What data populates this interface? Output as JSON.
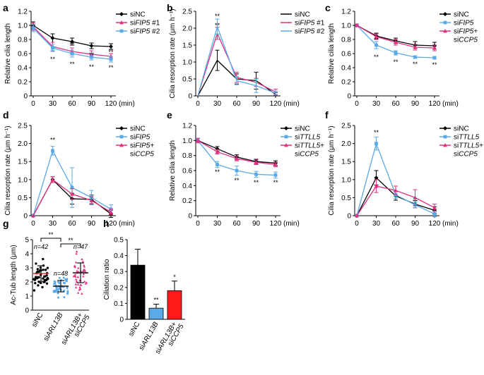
{
  "chart_data": [
    {
      "panel": "a",
      "type": "line",
      "ylabel": "Relative cilia length",
      "xunit": "(min)",
      "x": [
        0,
        30,
        60,
        90,
        120
      ],
      "ylim": [
        0,
        1.2
      ],
      "yticks": [
        "0",
        "0.2",
        "0.4",
        "0.6",
        "0.8",
        "1.0",
        "1.2"
      ],
      "series": [
        {
          "name": "siNC",
          "prefix": "si",
          "gene": "NC",
          "suffix": "",
          "color": "#000000",
          "marker": "diamond",
          "values": [
            1.0,
            0.82,
            0.77,
            0.71,
            0.7
          ],
          "err": [
            0.05,
            0.06,
            0.05,
            0.04,
            0.04
          ]
        },
        {
          "name": "siFIP5 #1",
          "prefix": "si",
          "gene": "FIP5",
          "suffix": " #1",
          "color": "#e0307f",
          "marker": "triangle",
          "values": [
            0.98,
            0.7,
            0.63,
            0.59,
            0.56
          ],
          "err": [
            0.05,
            0.06,
            0.05,
            0.05,
            0.04
          ]
        },
        {
          "name": "siFIP5 #2",
          "prefix": "si",
          "gene": "FIP5",
          "suffix": " #2",
          "color": "#5aa9e8",
          "marker": "square",
          "values": [
            0.96,
            0.68,
            0.6,
            0.55,
            0.52
          ],
          "err": [
            0.05,
            0.05,
            0.05,
            0.04,
            0.04
          ]
        }
      ],
      "annotations": [
        {
          "x": 30,
          "y": 0.52,
          "text": "**"
        },
        {
          "x": 60,
          "y": 0.73,
          "text": "**"
        },
        {
          "x": 60,
          "y": 0.45,
          "text": "**"
        },
        {
          "x": 90,
          "y": 0.58,
          "text": "**"
        },
        {
          "x": 90,
          "y": 0.41,
          "text": "**"
        },
        {
          "x": 120,
          "y": 0.62,
          "text": "**"
        },
        {
          "x": 120,
          "y": 0.4,
          "text": "**"
        }
      ]
    },
    {
      "panel": "b",
      "type": "line",
      "ylabel": "Cilia resorption rate (μm h⁻¹)",
      "xunit": "(min)",
      "x": [
        0,
        30,
        60,
        90,
        120
      ],
      "ylim": [
        0,
        2.5
      ],
      "yticks": [
        "0",
        "0.5",
        "1.0",
        "1.5",
        "2.0",
        "2.5"
      ],
      "series": [
        {
          "name": "siNC",
          "prefix": "si",
          "gene": "NC",
          "suffix": "",
          "color": "#000000",
          "marker": "none",
          "values": [
            0,
            1.05,
            0.5,
            0.45,
            0.05
          ],
          "err": [
            0,
            0.3,
            0.15,
            0.25,
            0.05
          ]
        },
        {
          "name": "siFIP5 #1",
          "prefix": "si",
          "gene": "FIP5",
          "suffix": " #1",
          "color": "#e0307f",
          "marker": "none",
          "values": [
            0,
            1.85,
            0.55,
            0.4,
            0.12
          ],
          "err": [
            0,
            0.18,
            0.15,
            0.12,
            0.08
          ]
        },
        {
          "name": "siFIP5 #2",
          "prefix": "si",
          "gene": "FIP5",
          "suffix": " #2",
          "color": "#5aa9e8",
          "marker": "none",
          "values": [
            0,
            2.05,
            0.45,
            0.3,
            0.08
          ],
          "err": [
            0,
            0.22,
            0.12,
            0.2,
            0.06
          ]
        }
      ],
      "annotations": [
        {
          "x": 30,
          "y": 2.35,
          "text": "**"
        },
        {
          "x": 30,
          "y": 2.08,
          "text": "**"
        }
      ]
    },
    {
      "panel": "c",
      "type": "line",
      "ylabel": "Relative cilia length",
      "xunit": "(min)",
      "x": [
        0,
        30,
        60,
        90,
        120
      ],
      "ylim": [
        0,
        1.2
      ],
      "yticks": [
        "0",
        "0.2",
        "0.4",
        "0.6",
        "0.8",
        "1.0",
        "1.2"
      ],
      "series": [
        {
          "name": "siNC",
          "prefix": "si",
          "gene": "NC",
          "suffix": "",
          "color": "#000000",
          "marker": "diamond",
          "values": [
            1.0,
            0.85,
            0.78,
            0.72,
            0.71
          ],
          "err": [
            0.02,
            0.04,
            0.04,
            0.05,
            0.05
          ]
        },
        {
          "name": "siFIP5",
          "prefix": "si",
          "gene": "FIP5",
          "suffix": "",
          "color": "#5aa9e8",
          "marker": "square",
          "values": [
            1.0,
            0.72,
            0.61,
            0.55,
            0.54
          ],
          "err": [
            0.02,
            0.05,
            0.03,
            0.02,
            0.02
          ]
        },
        {
          "name": "siFIP5+ siCCP5",
          "prefix": "si",
          "gene": "FIP5",
          "suffix": "+",
          "line2": "CCP5",
          "color": "#e0307f",
          "marker": "triangle",
          "values": [
            1.0,
            0.84,
            0.76,
            0.69,
            0.68
          ],
          "err": [
            0.02,
            0.04,
            0.04,
            0.04,
            0.04
          ]
        }
      ],
      "annotations": [
        {
          "x": 30,
          "y": 0.55,
          "text": "**"
        },
        {
          "x": 60,
          "y": 0.48,
          "text": "**"
        },
        {
          "x": 90,
          "y": 0.45,
          "text": "**"
        },
        {
          "x": 120,
          "y": 0.44,
          "text": "**"
        }
      ]
    },
    {
      "panel": "d",
      "type": "line",
      "ylabel": "Cilia resorption rate (μm h⁻¹)",
      "xunit": "(min)",
      "x": [
        0,
        30,
        60,
        90,
        120
      ],
      "ylim": [
        0,
        2.5
      ],
      "yticks": [
        "0",
        "0.5",
        "1.0",
        "1.5",
        "2.0",
        "2.5"
      ],
      "series": [
        {
          "name": "siNC",
          "prefix": "si",
          "gene": "NC",
          "suffix": "",
          "color": "#000000",
          "marker": "diamond",
          "values": [
            0,
            1.0,
            0.47,
            0.45,
            0.05
          ],
          "err": [
            0,
            0.08,
            0.15,
            0.12,
            0.1
          ]
        },
        {
          "name": "siFIP5",
          "prefix": "si",
          "gene": "FIP5",
          "suffix": "",
          "color": "#5aa9e8",
          "marker": "square",
          "values": [
            0,
            1.8,
            0.78,
            0.5,
            0.18
          ],
          "err": [
            0,
            0.12,
            0.55,
            0.2,
            0.12
          ]
        },
        {
          "name": "siFIP5+ siCCP5",
          "prefix": "si",
          "gene": "FIP5",
          "suffix": "+",
          "line2": "CCP5",
          "color": "#e0307f",
          "marker": "triangle",
          "values": [
            0,
            1.0,
            0.6,
            0.42,
            0.1
          ],
          "err": [
            0,
            0.08,
            0.15,
            0.1,
            0.08
          ]
        }
      ],
      "annotations": [
        {
          "x": 30,
          "y": 2.1,
          "text": "**"
        }
      ]
    },
    {
      "panel": "e",
      "type": "line",
      "ylabel": "Relative cilia length",
      "xunit": "(min)",
      "x": [
        0,
        30,
        60,
        90,
        120
      ],
      "ylim": [
        0,
        1.2
      ],
      "yticks": [
        "0",
        "0.2",
        "0.4",
        "0.6",
        "0.8",
        "1.0",
        "1.2"
      ],
      "series": [
        {
          "name": "siNC",
          "prefix": "si",
          "gene": "NC",
          "suffix": "",
          "color": "#000000",
          "marker": "diamond",
          "values": [
            1.0,
            0.89,
            0.78,
            0.72,
            0.7
          ],
          "err": [
            0.03,
            0.03,
            0.03,
            0.03,
            0.03
          ]
        },
        {
          "name": "siTTLL5",
          "prefix": "si",
          "gene": "TTLL5",
          "suffix": "",
          "color": "#5aa9e8",
          "marker": "square",
          "values": [
            1.0,
            0.68,
            0.6,
            0.55,
            0.54
          ],
          "err": [
            0.03,
            0.04,
            0.06,
            0.04,
            0.04
          ]
        },
        {
          "name": "siTTLL5+ siCCP5",
          "prefix": "si",
          "gene": "TTLL5",
          "suffix": "+",
          "line2": "CCP5",
          "color": "#e0307f",
          "marker": "triangle",
          "values": [
            1.0,
            0.85,
            0.76,
            0.71,
            0.68
          ],
          "err": [
            0.03,
            0.03,
            0.03,
            0.03,
            0.03
          ]
        }
      ],
      "annotations": [
        {
          "x": 30,
          "y": 0.58,
          "text": "**"
        },
        {
          "x": 60,
          "y": 0.47,
          "text": "**"
        },
        {
          "x": 90,
          "y": 0.44,
          "text": "**"
        },
        {
          "x": 120,
          "y": 0.44,
          "text": "**"
        }
      ]
    },
    {
      "panel": "f",
      "type": "line",
      "ylabel": "Cilia resorption rate (μm h⁻¹)",
      "xunit": "(min)",
      "x": [
        0,
        30,
        60,
        90,
        120
      ],
      "ylim": [
        0,
        2.5
      ],
      "yticks": [
        "0",
        "0.5",
        "1.0",
        "1.5",
        "2.0",
        "2.5"
      ],
      "series": [
        {
          "name": "siNC",
          "prefix": "si",
          "gene": "NC",
          "suffix": "",
          "color": "#000000",
          "marker": "diamond",
          "values": [
            0,
            1.05,
            0.55,
            0.32,
            0.15
          ],
          "err": [
            0,
            0.2,
            0.12,
            0.1,
            0.1
          ]
        },
        {
          "name": "siTTLL5",
          "prefix": "si",
          "gene": "TTLL5",
          "suffix": "",
          "color": "#5aa9e8",
          "marker": "square",
          "values": [
            0,
            2.0,
            0.58,
            0.3,
            0.05
          ],
          "err": [
            0,
            0.18,
            0.1,
            0.08,
            0.08
          ]
        },
        {
          "name": "siTTLL5+ siCCP5",
          "prefix": "si",
          "gene": "TTLL5",
          "suffix": "+",
          "line2": "CCP5",
          "color": "#e0307f",
          "marker": "triangle",
          "values": [
            0,
            0.82,
            0.7,
            0.5,
            0.22
          ],
          "err": [
            0,
            0.18,
            0.12,
            0.22,
            0.1
          ]
        }
      ],
      "annotations": [
        {
          "x": 30,
          "y": 2.3,
          "text": "**"
        }
      ]
    },
    {
      "panel": "g",
      "type": "scatter",
      "ylabel": "Ac-Tub length (μm)",
      "ylim": [
        0,
        5
      ],
      "yticks": [
        "0",
        "1",
        "2",
        "3",
        "4",
        "5"
      ],
      "groups": [
        {
          "label": "siNC",
          "label_parts": [
            {
              "t": "si"
            },
            {
              "t": "NC"
            }
          ],
          "color": "#000000",
          "shape": "circle",
          "n": 42,
          "n_label": "n=42",
          "mean": 2.6,
          "sd": 0.55
        },
        {
          "label": "siARL13B",
          "label_parts": [
            {
              "t": "si"
            },
            {
              "t": "ARL13B",
              "i": true
            }
          ],
          "color": "#5aa9e8",
          "shape": "square",
          "n": 48,
          "n_label": "n=48",
          "mean": 1.7,
          "sd": 0.4
        },
        {
          "label": "siARL13B+ siCCP5",
          "label_parts": [
            {
              "t": "si"
            },
            {
              "t": "ARL13B",
              "i": true
            },
            {
              "t": "+"
            }
          ],
          "label_line2_parts": [
            {
              "t": "si"
            },
            {
              "t": "CCP5",
              "i": true
            }
          ],
          "color": "#e0307f",
          "shape": "triangle",
          "n": 47,
          "n_label": "n=47",
          "mean": 2.65,
          "sd": 0.7
        }
      ],
      "significance": [
        {
          "from": 0,
          "to": 1,
          "text": "**"
        },
        {
          "from": 1,
          "to": 2,
          "text": "**"
        }
      ]
    },
    {
      "panel": "h",
      "type": "bar",
      "ylabel": "Ciliation ratio",
      "ylim": [
        0,
        0.5
      ],
      "yticks": [
        "0",
        "0.1",
        "0.2",
        "0.3",
        "0.4",
        "0.5"
      ],
      "categories": [
        "siNC",
        "siARL13B",
        "siARL13B+ siCCP5"
      ],
      "label_parts": [
        [
          {
            "t": "si"
          },
          {
            "t": "NC"
          }
        ],
        [
          {
            "t": "si"
          },
          {
            "t": "ARL13B",
            "i": true
          }
        ],
        [
          {
            "t": "si"
          },
          {
            "t": "ARL13B",
            "i": true
          },
          {
            "t": "+"
          }
        ]
      ],
      "label_line2_parts": [
        null,
        null,
        [
          {
            "t": "si"
          },
          {
            "t": "CCP5",
            "i": true
          }
        ]
      ],
      "values": [
        0.34,
        0.07,
        0.18
      ],
      "err": [
        0.1,
        0.025,
        0.06
      ],
      "colors": [
        "#000000",
        "#5aa9e8",
        "#ff1a1a"
      ],
      "annotations": [
        "",
        "**",
        "*"
      ]
    }
  ]
}
